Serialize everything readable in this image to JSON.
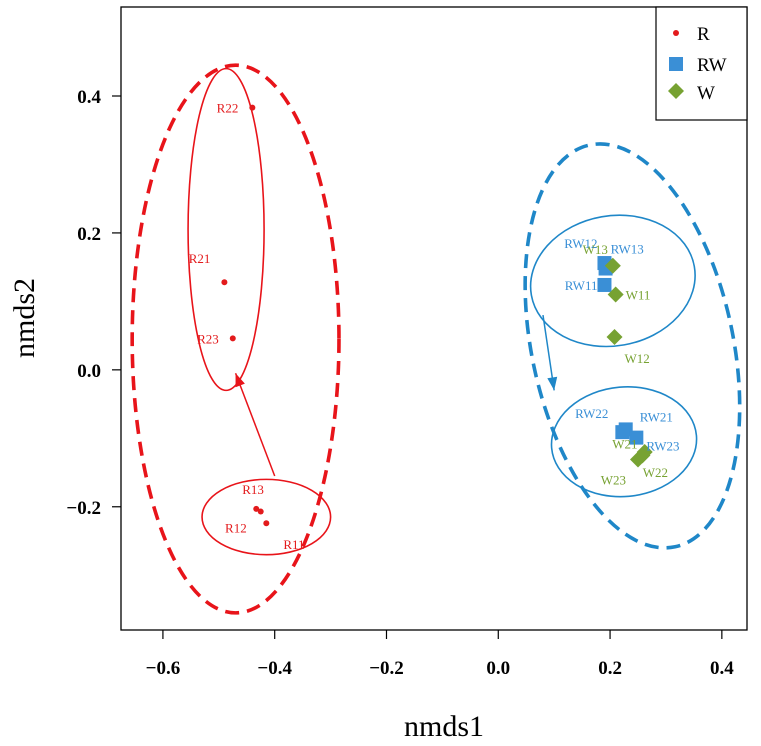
{
  "chart_data": {
    "type": "scatter",
    "title": "",
    "xlabel": "nmds1",
    "ylabel": "nmds2",
    "xlim": [
      -0.675,
      0.445
    ],
    "ylim": [
      -0.38,
      0.53
    ],
    "xticks": [
      -0.6,
      -0.4,
      -0.2,
      0.0,
      0.2,
      0.4
    ],
    "yticks": [
      -0.2,
      0.0,
      0.2,
      0.4
    ],
    "xtick_labels": [
      "−0.6",
      "−0.4",
      "−0.2",
      "0.0",
      "0.2",
      "0.4"
    ],
    "ytick_labels": [
      "−0.2",
      "0.0",
      "0.2",
      "0.4"
    ],
    "grid": false,
    "legend_position": "top-right",
    "colors": {
      "R": "#e31a1c",
      "RW": "#3a8fd6",
      "W": "#77a232",
      "R_outline": "#e8141a",
      "RW_outline": "#1f87c8"
    },
    "series": [
      {
        "name": "R",
        "marker": "dot",
        "points": [
          {
            "label": "R11",
            "x": -0.415,
            "y": -0.224
          },
          {
            "label": "R12",
            "x": -0.425,
            "y": -0.207
          },
          {
            "label": "R13",
            "x": -0.433,
            "y": -0.203
          },
          {
            "label": "R21",
            "x": -0.49,
            "y": 0.128
          },
          {
            "label": "R22",
            "x": -0.44,
            "y": 0.383
          },
          {
            "label": "R23",
            "x": -0.475,
            "y": 0.046
          }
        ]
      },
      {
        "name": "RW",
        "marker": "square",
        "points": [
          {
            "label": "RW11",
            "x": 0.19,
            "y": 0.124
          },
          {
            "label": "RW12",
            "x": 0.19,
            "y": 0.156
          },
          {
            "label": "RW13",
            "x": 0.192,
            "y": 0.148
          },
          {
            "label": "RW21",
            "x": 0.228,
            "y": -0.087
          },
          {
            "label": "RW22",
            "x": 0.222,
            "y": -0.091
          },
          {
            "label": "RW23",
            "x": 0.247,
            "y": -0.099
          }
        ]
      },
      {
        "name": "W",
        "marker": "diamond",
        "points": [
          {
            "label": "W11",
            "x": 0.21,
            "y": 0.11
          },
          {
            "label": "W12",
            "x": 0.208,
            "y": 0.048
          },
          {
            "label": "W13",
            "x": 0.205,
            "y": 0.152
          },
          {
            "label": "W21",
            "x": 0.258,
            "y": -0.125
          },
          {
            "label": "W22",
            "x": 0.262,
            "y": -0.12
          },
          {
            "label": "W23",
            "x": 0.25,
            "y": -0.131
          }
        ]
      }
    ],
    "ellipses": [
      {
        "group": "R1",
        "cx": -0.415,
        "cy": -0.215,
        "rx": 0.115,
        "ry": 0.055,
        "rot": 0,
        "style": "solid",
        "color": "#e8141a"
      },
      {
        "group": "R2",
        "cx": -0.487,
        "cy": 0.205,
        "rx": 0.068,
        "ry": 0.235,
        "rot": 0,
        "style": "solid",
        "color": "#e8141a"
      },
      {
        "group": "R",
        "cx": -0.47,
        "cy": 0.045,
        "rx": 0.185,
        "ry": 0.4,
        "rot": 0,
        "style": "dashed",
        "color": "#e8141a"
      },
      {
        "group": "RW1",
        "cx": 0.205,
        "cy": 0.13,
        "rx": 0.148,
        "ry": 0.095,
        "rot": -10,
        "style": "solid",
        "color": "#1f87c8"
      },
      {
        "group": "RW2",
        "cx": 0.225,
        "cy": -0.105,
        "rx": 0.13,
        "ry": 0.08,
        "rot": -5,
        "style": "solid",
        "color": "#1f87c8"
      },
      {
        "group": "RW",
        "cx": 0.24,
        "cy": 0.035,
        "rx": 0.18,
        "ry": 0.3,
        "rot": -12,
        "style": "dashed",
        "color": "#1f87c8"
      }
    ],
    "arrows": [
      {
        "color": "#e8141a",
        "from": [
          -0.4,
          -0.155
        ],
        "to": [
          -0.47,
          -0.005
        ]
      },
      {
        "color": "#1f87c8",
        "from": [
          0.08,
          0.08
        ],
        "to": [
          0.1,
          -0.03
        ]
      }
    ]
  }
}
